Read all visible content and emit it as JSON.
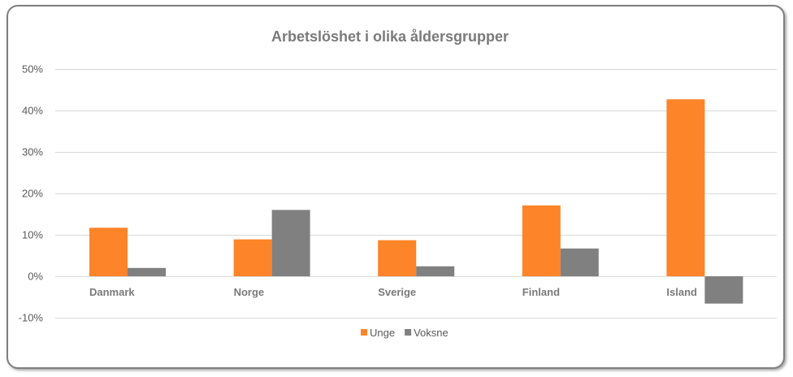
{
  "chart_data": {
    "type": "bar",
    "title": "Arbetslöshet i olika åldersgrupper",
    "xlabel": "",
    "ylabel": "",
    "ylim": [
      -0.1,
      0.5
    ],
    "yticks": [
      "50%",
      "40%",
      "30%",
      "20%",
      "10%",
      "0%",
      "-10%"
    ],
    "ytick_values": [
      0.5,
      0.4,
      0.3,
      0.2,
      0.1,
      0,
      -0.1
    ],
    "grid": true,
    "legend_position": "bottom",
    "categories": [
      "Danmark",
      "Norge",
      "Sverige",
      "Finland",
      "Island"
    ],
    "series": [
      {
        "name": "Unge",
        "color": "#fd8428",
        "values": [
          0.117,
          0.089,
          0.087,
          0.171,
          0.427
        ]
      },
      {
        "name": "Voksne",
        "color": "#808080",
        "values": [
          0.02,
          0.16,
          0.024,
          0.067,
          -0.066
        ]
      }
    ]
  }
}
